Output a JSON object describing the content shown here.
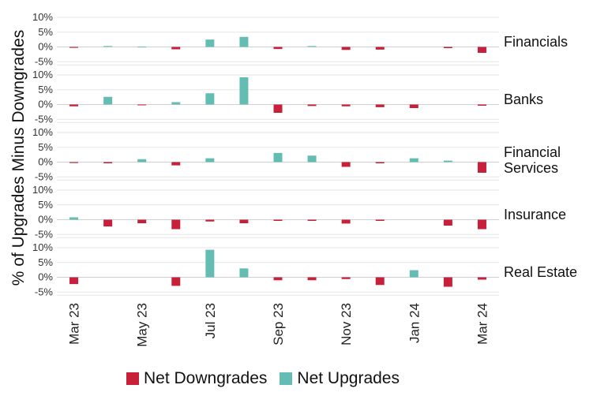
{
  "chart_data": {
    "type": "bar",
    "ylabel": "% of Upgrades Minus Downgrades",
    "x": [
      "Mar 23",
      "Apr 23",
      "May 23",
      "Jun 23",
      "Jul 23",
      "Aug 23",
      "Sep 23",
      "Oct 23",
      "Nov 23",
      "Dec 23",
      "Jan 24",
      "Feb 24",
      "Mar 24"
    ],
    "x_tick_labels": [
      "Mar 23",
      "May 23",
      "Jul 23",
      "Sep 23",
      "Nov 23",
      "Jan 24",
      "Mar 24"
    ],
    "y_ticks": [
      "10%",
      "5%",
      "0%",
      "-5%"
    ],
    "ylim": [
      -5,
      10
    ],
    "colors": {
      "downgrade": "#c8203a",
      "upgrade": "#64bdb2"
    },
    "legend": [
      {
        "name": "Net Downgrades",
        "color": "#c8203a"
      },
      {
        "name": "Net Upgrades",
        "color": "#64bdb2"
      }
    ],
    "panels": [
      {
        "name": "Financials",
        "values": [
          -0.3,
          0.3,
          0.1,
          -0.8,
          2.5,
          3.4,
          -0.7,
          0.3,
          -1.0,
          -0.9,
          0,
          -0.4,
          -2.0
        ]
      },
      {
        "name": "Banks",
        "values": [
          -0.6,
          2.6,
          -0.2,
          0.8,
          3.8,
          9.2,
          -2.8,
          -0.5,
          -0.6,
          -0.9,
          -1.2,
          0,
          -0.4
        ]
      },
      {
        "name": "Financial Services",
        "values": [
          -0.3,
          -0.4,
          1.0,
          -1.1,
          1.3,
          0,
          3.1,
          2.2,
          -1.6,
          -0.4,
          1.3,
          0.5,
          -3.6
        ]
      },
      {
        "name": "Insurance",
        "values": [
          0.8,
          -2.3,
          -1.2,
          -3.2,
          -0.6,
          -1.2,
          -0.4,
          -0.4,
          -1.3,
          -0.4,
          0,
          -2.0,
          -3.2
        ]
      },
      {
        "name": "Real Estate",
        "values": [
          -2.3,
          0,
          0,
          -2.9,
          9.3,
          3.0,
          -1.0,
          -1.0,
          -0.6,
          -2.6,
          2.4,
          -3.2,
          -0.8
        ]
      }
    ]
  }
}
